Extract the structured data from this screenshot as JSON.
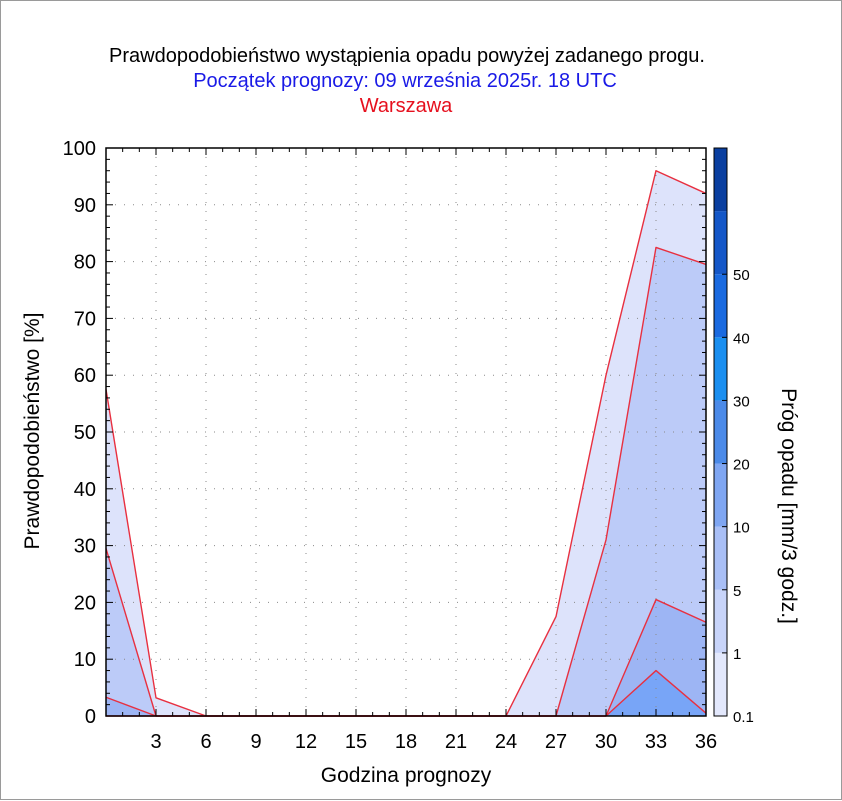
{
  "chart_data": {
    "type": "area",
    "title": "Prawdopodobieństwo wystąpienia opadu powyżej zadanego progu.",
    "subtitle": "Początek prognozy: 09 września 2025r. 18 UTC",
    "location": "Warszawa",
    "xlabel": "Godzina prognozy",
    "ylabel": "Prawdopodobieństwo [%]",
    "colorbar_label": "Próg opadu [mm/3 godz.]",
    "xlim": [
      0,
      36
    ],
    "ylim": [
      0,
      100
    ],
    "x_ticks": [
      "3",
      "6",
      "9",
      "12",
      "15",
      "18",
      "21",
      "24",
      "27",
      "30",
      "33",
      "36"
    ],
    "y_ticks": [
      "0",
      "10",
      "20",
      "30",
      "40",
      "50",
      "60",
      "70",
      "80",
      "90",
      "100"
    ],
    "grid": true,
    "x": [
      0,
      3,
      6,
      9,
      12,
      15,
      18,
      21,
      24,
      27,
      30,
      33,
      36
    ],
    "series": [
      {
        "name": "0.1",
        "color": "#dde3fb",
        "values": [
          57.5,
          3.2,
          0,
          0,
          0,
          0,
          0,
          0,
          0,
          17.5,
          60,
          96,
          92
        ]
      },
      {
        "name": "1",
        "color": "#bccbf8",
        "values": [
          29.5,
          0,
          0,
          0,
          0,
          0,
          0,
          0,
          0,
          0,
          31,
          82.5,
          79.5
        ]
      },
      {
        "name": "5",
        "color": "#9db5f4",
        "values": [
          3.3,
          0,
          0,
          0,
          0,
          0,
          0,
          0,
          0,
          0,
          0,
          20.5,
          16.5
        ]
      },
      {
        "name": "10",
        "color": "#78a5f7",
        "values": [
          0,
          0,
          0,
          0,
          0,
          0,
          0,
          0,
          0,
          0,
          0,
          8,
          0.5
        ]
      }
    ],
    "colorbar": {
      "tick_labels": [
        "0.1",
        "1",
        "5",
        "10",
        "20",
        "30",
        "40",
        "50"
      ],
      "colors": [
        "#e3e8fc",
        "#c8d4f9",
        "#a9bff6",
        "#7fa6f2",
        "#4b8ae8",
        "#1b8ff0",
        "#1a6ae0",
        "#1457c8",
        "#0a3fa0"
      ]
    },
    "outline_color": "#e83040"
  }
}
